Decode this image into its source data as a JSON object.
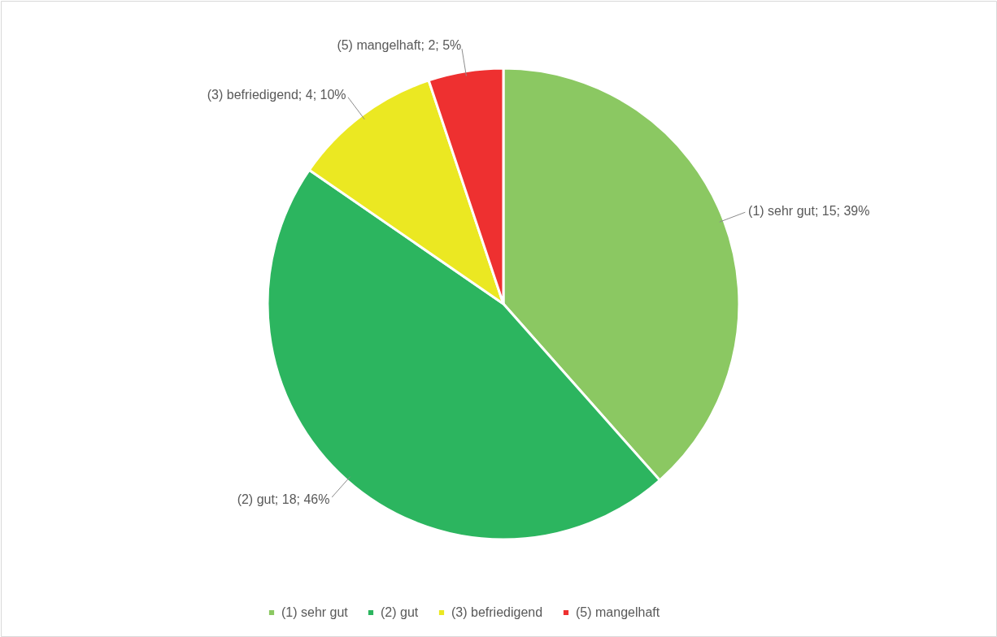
{
  "chart_data": {
    "type": "pie",
    "categories": [
      "(1) sehr gut",
      "(2) gut",
      "(3) befriedigend",
      "(5) mangelhaft"
    ],
    "values": [
      15,
      18,
      4,
      2
    ],
    "colors": [
      "#8bc862",
      "#2cb55f",
      "#ebe822",
      "#ee3030"
    ],
    "value_labels": [
      "(1) sehr gut; 15; 39%",
      "(2) gut; 18; 46%",
      "(3) befriedigend; 4; 10%",
      "(5) mangelhaft; 2; 5%"
    ],
    "legend": "bottom"
  }
}
